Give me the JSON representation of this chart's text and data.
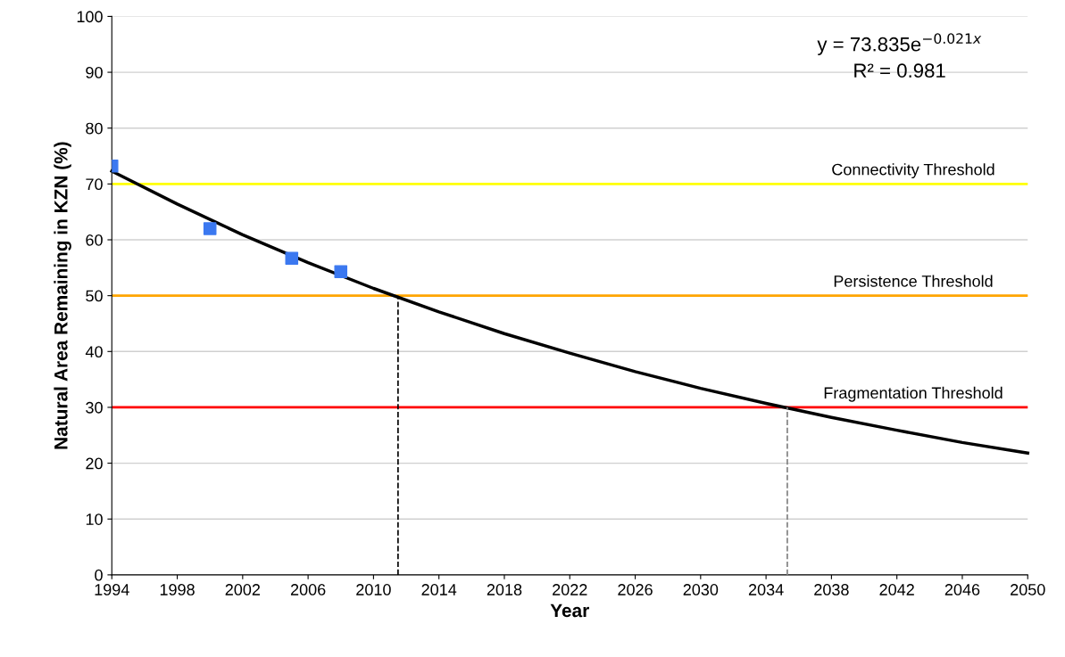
{
  "chart_data": {
    "type": "scatter",
    "xlabel": "Year",
    "ylabel": "Natural Area Remaining in KZN (%)",
    "xlim": [
      1994,
      2050
    ],
    "xticks": [
      1994,
      1998,
      2002,
      2006,
      2010,
      2014,
      2018,
      2022,
      2026,
      2030,
      2034,
      2038,
      2042,
      2046,
      2050
    ],
    "ylim": [
      0,
      100
    ],
    "yticks": [
      0,
      10,
      20,
      30,
      40,
      50,
      60,
      70,
      80,
      90,
      100
    ],
    "grid": "y",
    "marker": "square",
    "series": [
      {
        "color": "#3b78f0",
        "x": [
          1994,
          2000,
          2005,
          2008
        ],
        "values": [
          73.2,
          62.0,
          56.7,
          54.3
        ]
      },
      {
        "type": "line",
        "color": "#000000",
        "marker": "none",
        "x": [
          1994,
          1998,
          2002,
          2006,
          2010,
          2014,
          2018,
          2022,
          2026,
          2030,
          2034,
          2038,
          2042,
          2046,
          2050
        ],
        "values": [
          72.3,
          66.4,
          60.9,
          55.9,
          51.3,
          47.1,
          43.2,
          39.7,
          36.4,
          33.4,
          30.7,
          28.2,
          25.9,
          23.7,
          21.8
        ]
      },
      {
        "type": "line",
        "color": "#000000",
        "marker": "none",
        "line_style": "dashed",
        "x": [
          2011.5,
          2011.5
        ],
        "values": [
          0,
          50
        ]
      },
      {
        "type": "line",
        "color": "#808080",
        "marker": "none",
        "line_style": "dashed",
        "x": [
          2035.3,
          2035.3
        ],
        "values": [
          0,
          30
        ]
      }
    ],
    "ref_lines": [
      {
        "axis": "y",
        "value": 70,
        "label": "Connectivity Threshold",
        "color": "#ffff00"
      },
      {
        "axis": "y",
        "value": 50,
        "label": "Persistence Threshold",
        "color": "#ffa500"
      },
      {
        "axis": "y",
        "value": 30,
        "label": "Fragmentation Threshold",
        "color": "#ff0000"
      }
    ],
    "annotations": [
      "y = 73.835e$^{−0.021x}$",
      "R² = 0.981"
    ]
  }
}
